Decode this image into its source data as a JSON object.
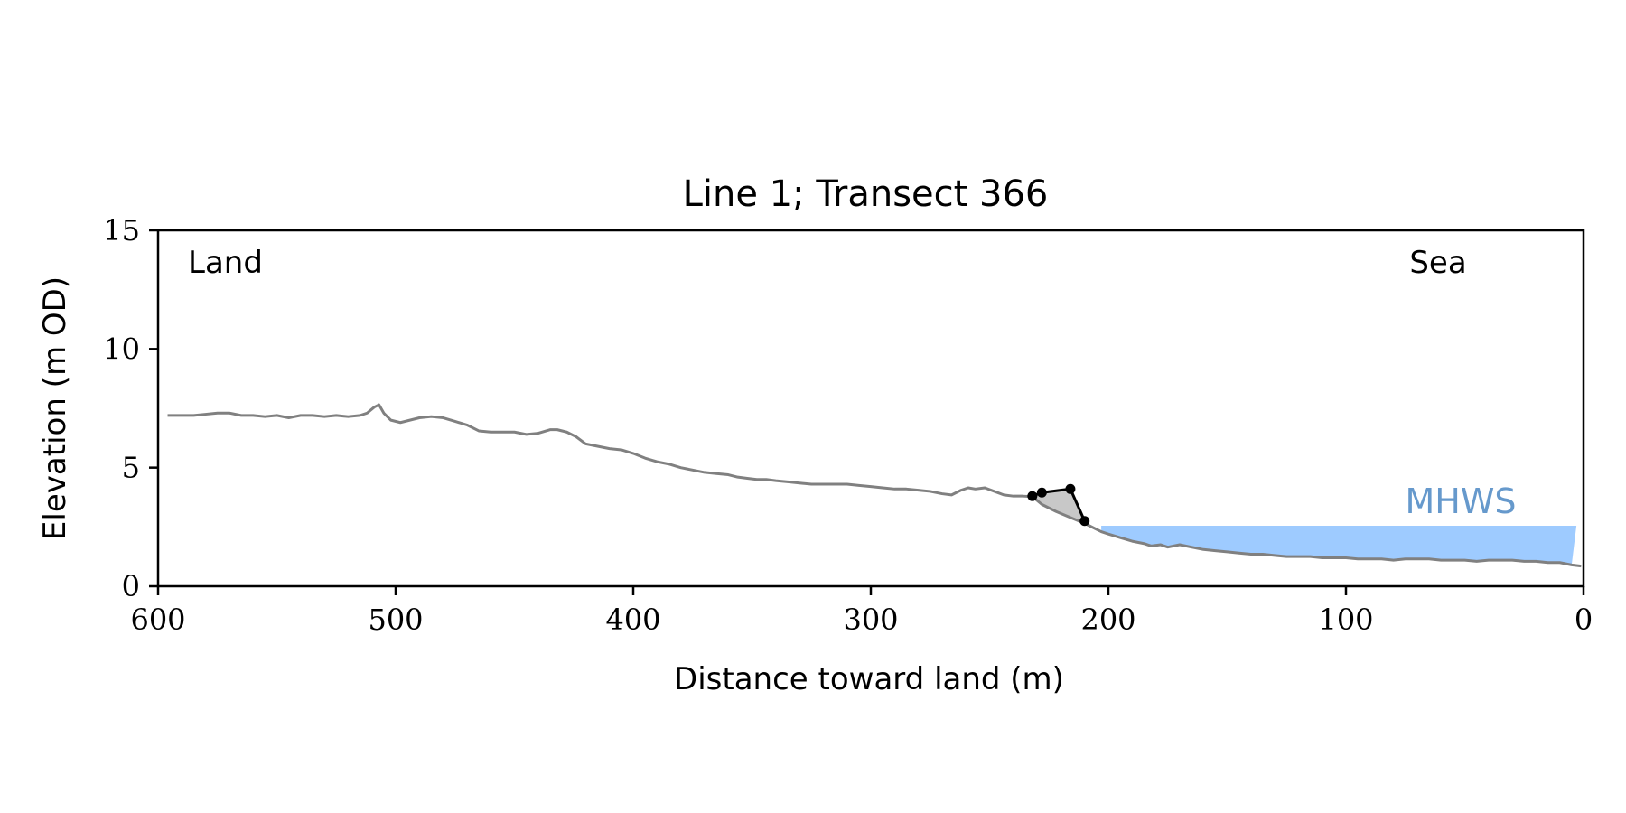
{
  "chart_data": {
    "type": "line",
    "title": "Line 1; Transect 366",
    "xlabel": "Distance toward land (m)",
    "ylabel": "Elevation (m OD)",
    "xlim": [
      600,
      0
    ],
    "ylim": [
      0,
      15
    ],
    "x_ticks": [
      600,
      500,
      400,
      300,
      200,
      100,
      0
    ],
    "y_ticks": [
      0,
      5,
      10,
      15
    ],
    "grid": false,
    "annotations": {
      "land": "Land",
      "sea": "Sea",
      "mhws": "MHWS"
    },
    "mhws_level": 2.55,
    "mhws_extent": [
      203,
      3
    ],
    "colors": {
      "profile": "#808080",
      "cliff": "#000000",
      "cliff_fill": "#c8c8c8",
      "water": "#9ecbff",
      "mhws_label": "#6699cc"
    },
    "series": [
      {
        "name": "",
        "x": [
          596,
          590,
          585,
          580,
          575,
          570,
          565,
          560,
          555,
          550,
          545,
          540,
          535,
          530,
          525,
          520,
          515,
          512,
          509,
          507,
          505,
          502,
          498,
          494,
          490,
          485,
          480,
          475,
          470,
          465,
          460,
          455,
          450,
          445,
          440,
          435,
          432,
          428,
          424,
          420,
          415,
          410,
          405,
          400,
          395,
          390,
          385,
          380,
          375,
          370,
          365,
          360,
          356,
          352,
          348,
          344,
          340,
          335,
          330,
          325,
          320,
          315,
          310,
          305,
          300,
          295,
          290,
          285,
          280,
          275,
          270,
          266,
          262,
          259,
          256,
          252,
          248,
          244,
          240,
          236,
          232
        ],
        "y": [
          7.2,
          7.2,
          7.2,
          7.25,
          7.3,
          7.3,
          7.2,
          7.2,
          7.15,
          7.2,
          7.1,
          7.2,
          7.2,
          7.15,
          7.2,
          7.15,
          7.2,
          7.3,
          7.55,
          7.65,
          7.3,
          7.0,
          6.9,
          7.0,
          7.1,
          7.15,
          7.1,
          6.95,
          6.8,
          6.55,
          6.5,
          6.5,
          6.5,
          6.4,
          6.45,
          6.6,
          6.6,
          6.5,
          6.3,
          6.0,
          5.9,
          5.8,
          5.75,
          5.6,
          5.4,
          5.25,
          5.15,
          5.0,
          4.9,
          4.8,
          4.75,
          4.7,
          4.6,
          4.55,
          4.5,
          4.5,
          4.45,
          4.4,
          4.35,
          4.3,
          4.3,
          4.3,
          4.3,
          4.25,
          4.2,
          4.15,
          4.1,
          4.1,
          4.05,
          4.0,
          3.9,
          3.85,
          4.05,
          4.15,
          4.1,
          4.15,
          4.0,
          3.85,
          3.8,
          3.8,
          3.78
        ]
      },
      {
        "name": "",
        "x": [
          232,
          228,
          222,
          216,
          210,
          206,
          203,
          200,
          195,
          190,
          185,
          182,
          178,
          175,
          170,
          165,
          160,
          155,
          150,
          145,
          140,
          135,
          130,
          125,
          120,
          115,
          110,
          105,
          100,
          95,
          90,
          85,
          80,
          75,
          70,
          65,
          60,
          55,
          50,
          45,
          40,
          35,
          30,
          25,
          20,
          15,
          10,
          5,
          1
        ],
        "y": [
          3.78,
          3.45,
          3.15,
          2.9,
          2.65,
          2.45,
          2.3,
          2.2,
          2.05,
          1.9,
          1.8,
          1.7,
          1.75,
          1.65,
          1.75,
          1.65,
          1.55,
          1.5,
          1.45,
          1.4,
          1.35,
          1.35,
          1.3,
          1.25,
          1.25,
          1.25,
          1.2,
          1.2,
          1.2,
          1.15,
          1.15,
          1.15,
          1.1,
          1.15,
          1.15,
          1.15,
          1.1,
          1.1,
          1.1,
          1.05,
          1.1,
          1.1,
          1.1,
          1.05,
          1.05,
          1.0,
          1.0,
          0.9,
          0.85
        ]
      },
      {
        "name": "",
        "x": [
          232,
          228,
          216,
          210
        ],
        "y": [
          3.8,
          3.95,
          4.1,
          2.75
        ]
      }
    ]
  }
}
